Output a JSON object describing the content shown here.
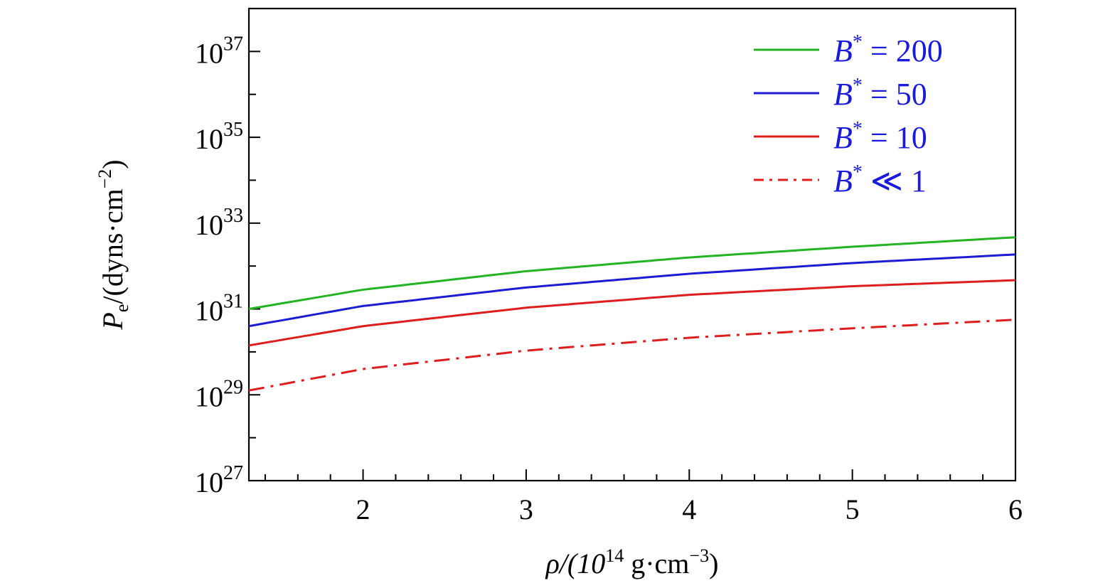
{
  "chart_data": {
    "type": "line",
    "title": "",
    "xlabel": "ρ/(10^14 g·cm^−3)",
    "ylabel": "P_e/(dyns·cm^−2)",
    "yscale": "log",
    "xlim": [
      1.3,
      6
    ],
    "ylim_exponent": [
      27,
      38
    ],
    "x_ticks": [
      2,
      3,
      4,
      5,
      6
    ],
    "y_tick_exponents": [
      27,
      29,
      31,
      33,
      35,
      37
    ],
    "y_tick_base": "10",
    "xlabel_parts": {
      "pre": "ρ/(10",
      "sup1": "14",
      "mid": " g·cm",
      "sup2": "−3",
      "post": ")"
    },
    "ylabel_parts": {
      "main": "P",
      "sub": "e",
      "pre": "/(dyns·cm",
      "sup": "−2",
      "post": ")"
    },
    "legend_position": "top-right",
    "series": [
      {
        "name": "B* = 200",
        "label_main": "B",
        "label_sup": "*",
        "label_rest": " = 200",
        "color": "#22b422",
        "style": "solid",
        "x": [
          1.3,
          2,
          3,
          4,
          5,
          6
        ],
        "log10_y": [
          31.0,
          31.45,
          31.88,
          32.2,
          32.45,
          32.67
        ]
      },
      {
        "name": "B* = 50",
        "label_main": "B",
        "label_sup": "*",
        "label_rest": " = 50",
        "color": "#1c1cd2",
        "style": "solid",
        "x": [
          1.3,
          2,
          3,
          4,
          5,
          6
        ],
        "log10_y": [
          30.6,
          31.07,
          31.5,
          31.82,
          32.07,
          32.27
        ]
      },
      {
        "name": "B* = 10",
        "label_main": "B",
        "label_sup": "*",
        "label_rest": " = 10",
        "color": "#dc1e1e",
        "style": "solid",
        "x": [
          1.3,
          2,
          3,
          4,
          5,
          6
        ],
        "log10_y": [
          30.15,
          30.6,
          31.03,
          31.33,
          31.53,
          31.67
        ]
      },
      {
        "name": "B* ≪ 1",
        "label_main": "B",
        "label_sup": "*",
        "label_rest": " ≪ 1",
        "color": "#dc1e1e",
        "style": "dashdot",
        "x": [
          1.3,
          2,
          3,
          4,
          5,
          6
        ],
        "log10_y": [
          29.1,
          29.6,
          30.03,
          30.33,
          30.55,
          30.75
        ]
      }
    ]
  }
}
